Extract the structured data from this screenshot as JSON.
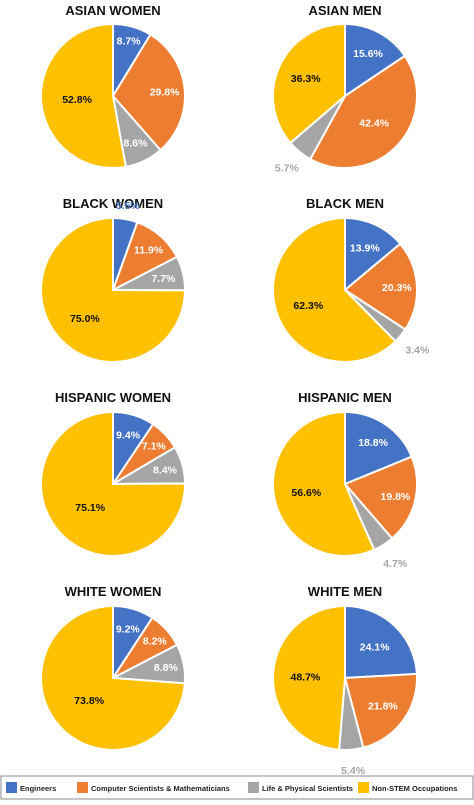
{
  "colors": {
    "engineers": "#4472C4",
    "cs_math": "#ED7D31",
    "life_physical": "#A5A5A5",
    "non_stem": "#FFC000"
  },
  "legend": [
    {
      "label": "Engineers",
      "color": "#4472C4"
    },
    {
      "label": "Computer Scientists & Mathematicians",
      "color": "#ED7D31"
    },
    {
      "label": "Life & Physical Scientists",
      "color": "#A5A5A5"
    },
    {
      "label": "Non-STEM Occupations",
      "color": "#FFC000"
    }
  ],
  "chart_data": [
    {
      "type": "pie",
      "title": "ASIAN WOMEN",
      "categories": [
        "Engineers",
        "Computer Scientists & Mathematicians",
        "Life & Physical Scientists",
        "Non-STEM Occupations"
      ],
      "values": [
        8.7,
        29.8,
        8.6,
        52.8
      ],
      "labels": [
        "8.7%",
        "29.8%",
        "8.6%",
        "52.8%"
      ]
    },
    {
      "type": "pie",
      "title": "ASIAN MEN",
      "categories": [
        "Engineers",
        "Computer Scientists & Mathematicians",
        "Life & Physical Scientists",
        "Non-STEM Occupations"
      ],
      "values": [
        15.6,
        42.4,
        5.7,
        36.3
      ],
      "labels": [
        "15.6%",
        "42.4%",
        "5.7%",
        "36.3%"
      ]
    },
    {
      "type": "pie",
      "title": "BLACK WOMEN",
      "categories": [
        "Engineers",
        "Computer Scientists & Mathematicians",
        "Life & Physical Scientists",
        "Non-STEM Occupations"
      ],
      "values": [
        5.5,
        11.9,
        7.7,
        75.0
      ],
      "labels": [
        "5.5%",
        "11.9%",
        "7.7%",
        "75.0%"
      ]
    },
    {
      "type": "pie",
      "title": "BLACK MEN",
      "categories": [
        "Engineers",
        "Computer Scientists & Mathematicians",
        "Life & Physical Scientists",
        "Non-STEM Occupations"
      ],
      "values": [
        13.9,
        20.3,
        3.4,
        62.3
      ],
      "labels": [
        "13.9%",
        "20.3%",
        "3.4%",
        "62.3%"
      ]
    },
    {
      "type": "pie",
      "title": "HISPANIC WOMEN",
      "categories": [
        "Engineers",
        "Computer Scientists & Mathematicians",
        "Life & Physical Scientists",
        "Non-STEM Occupations"
      ],
      "values": [
        9.4,
        7.1,
        8.4,
        75.1
      ],
      "labels": [
        "9.4%",
        "7.1%",
        "8.4%",
        "75.1%"
      ]
    },
    {
      "type": "pie",
      "title": "HISPANIC MEN",
      "categories": [
        "Engineers",
        "Computer Scientists & Mathematicians",
        "Life & Physical Scientists",
        "Non-STEM Occupations"
      ],
      "values": [
        18.8,
        19.8,
        4.7,
        56.6
      ],
      "labels": [
        "18.8%",
        "19.8%",
        "4.7%",
        "56.6%"
      ]
    },
    {
      "type": "pie",
      "title": "WHITE WOMEN",
      "categories": [
        "Engineers",
        "Computer Scientists & Mathematicians",
        "Life & Physical Scientists",
        "Non-STEM Occupations"
      ],
      "values": [
        9.2,
        8.2,
        8.8,
        73.8
      ],
      "labels": [
        "9.2%",
        "8.2%",
        "8.8%",
        "73.8%"
      ]
    },
    {
      "type": "pie",
      "title": "WHITE MEN",
      "categories": [
        "Engineers",
        "Computer Scientists & Mathematicians",
        "Life & Physical Scientists",
        "Non-STEM Occupations"
      ],
      "values": [
        24.1,
        21.8,
        5.4,
        48.7
      ],
      "labels": [
        "24.1%",
        "21.8%",
        "5.4%",
        "48.7%"
      ]
    }
  ]
}
